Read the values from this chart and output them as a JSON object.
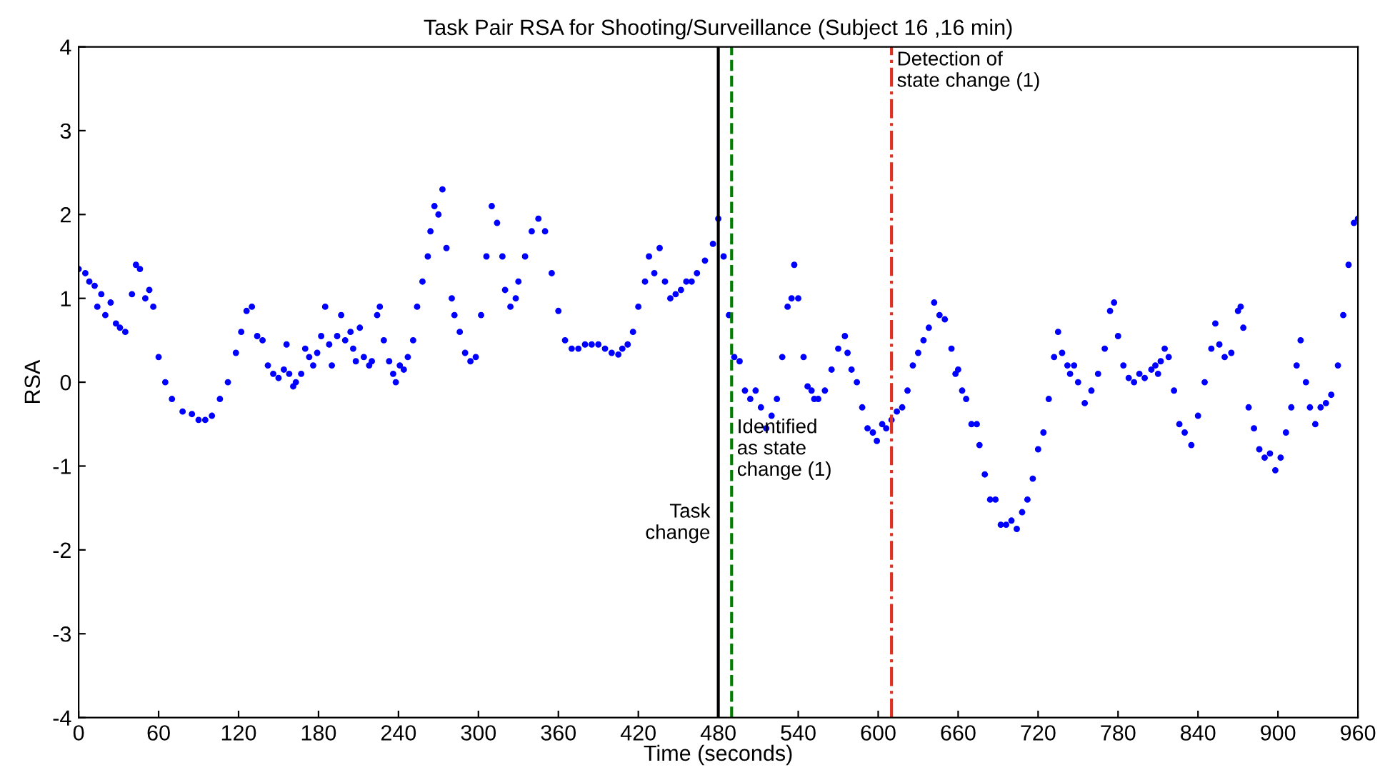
{
  "chart_data": {
    "type": "scatter",
    "title": "Task Pair RSA for Shooting/Surveillance (Subject 16 ,16 min)",
    "xlabel": "Time (seconds)",
    "ylabel": "RSA",
    "x": [
      0,
      5,
      8,
      12,
      14,
      17,
      20,
      24,
      28,
      31,
      35,
      40,
      43,
      46,
      50,
      53,
      56,
      60,
      65,
      70,
      78,
      85,
      90,
      95,
      100,
      106,
      112,
      118,
      122,
      126,
      130,
      134,
      138,
      142,
      146,
      150,
      154,
      156,
      158,
      161,
      163,
      167,
      170,
      173,
      176,
      179,
      182,
      185,
      188,
      190,
      194,
      197,
      200,
      204,
      206,
      208,
      211,
      214,
      218,
      220,
      224,
      226,
      229,
      233,
      236,
      238,
      241,
      244,
      247,
      251,
      254,
      258,
      262,
      264,
      267,
      270,
      273,
      276,
      280,
      282,
      286,
      290,
      294,
      298,
      302,
      306,
      310,
      314,
      318,
      320,
      324,
      328,
      330,
      335,
      340,
      345,
      350,
      355,
      360,
      365,
      370,
      375,
      380,
      385,
      390,
      395,
      400,
      405,
      408,
      412,
      416,
      420,
      425,
      428,
      432,
      436,
      440,
      444,
      448,
      452,
      456,
      460,
      464,
      470,
      476,
      480,
      484,
      488,
      492,
      496,
      500,
      504,
      508,
      512,
      516,
      520,
      524,
      528,
      532,
      535,
      537,
      540,
      544,
      547,
      550,
      552,
      555,
      560,
      565,
      570,
      575,
      577,
      580,
      584,
      588,
      592,
      596,
      599,
      603,
      606,
      610,
      614,
      618,
      622,
      626,
      630,
      634,
      638,
      642,
      646,
      650,
      655,
      658,
      660,
      663,
      666,
      670,
      674,
      676,
      680,
      684,
      688,
      692,
      696,
      700,
      704,
      708,
      712,
      716,
      720,
      724,
      728,
      732,
      735,
      738,
      742,
      744,
      747,
      750,
      755,
      760,
      765,
      770,
      774,
      777,
      780,
      784,
      788,
      792,
      796,
      800,
      805,
      808,
      810,
      812,
      815,
      818,
      822,
      826,
      830,
      835,
      840,
      845,
      850,
      853,
      856,
      860,
      865,
      870,
      872,
      874,
      878,
      882,
      886,
      890,
      894,
      898,
      902,
      906,
      910,
      914,
      917,
      921,
      924,
      928,
      932,
      936,
      940,
      945,
      949,
      953,
      957,
      960
    ],
    "series": [
      {
        "color": "#0000ff",
        "values": [
          1.35,
          1.3,
          1.2,
          1.15,
          0.9,
          1.05,
          0.8,
          0.95,
          0.7,
          0.65,
          0.6,
          1.05,
          1.4,
          1.35,
          1.0,
          1.1,
          0.9,
          0.3,
          0.0,
          -0.2,
          -0.35,
          -0.38,
          -0.45,
          -0.45,
          -0.4,
          -0.2,
          0.0,
          0.35,
          0.6,
          0.85,
          0.9,
          0.55,
          0.5,
          0.2,
          0.1,
          0.05,
          0.15,
          0.45,
          0.1,
          -0.05,
          0.0,
          0.1,
          0.4,
          0.3,
          0.2,
          0.35,
          0.55,
          0.9,
          0.45,
          0.2,
          0.55,
          0.8,
          0.5,
          0.6,
          0.4,
          0.25,
          0.65,
          0.3,
          0.2,
          0.25,
          0.8,
          0.9,
          0.5,
          0.25,
          0.1,
          0.0,
          0.2,
          0.15,
          0.3,
          0.5,
          0.9,
          1.2,
          1.5,
          1.8,
          2.1,
          2.0,
          2.3,
          1.6,
          1.0,
          0.8,
          0.6,
          0.35,
          0.25,
          0.3,
          0.8,
          1.5,
          2.1,
          1.9,
          1.5,
          1.1,
          0.9,
          1.0,
          1.2,
          1.5,
          1.8,
          1.95,
          1.8,
          1.3,
          0.85,
          0.5,
          0.4,
          0.4,
          0.45,
          0.45,
          0.45,
          0.4,
          0.35,
          0.33,
          0.4,
          0.45,
          0.6,
          0.9,
          1.2,
          1.5,
          1.3,
          1.6,
          1.2,
          1.0,
          1.05,
          1.1,
          1.2,
          1.2,
          1.3,
          1.45,
          1.65,
          1.95,
          1.5,
          0.8,
          0.3,
          0.25,
          -0.1,
          -0.2,
          -0.1,
          -0.3,
          -0.55,
          -0.4,
          -0.2,
          0.3,
          0.9,
          1.0,
          1.4,
          1.0,
          0.3,
          -0.05,
          -0.1,
          -0.2,
          -0.2,
          -0.1,
          0.15,
          0.4,
          0.55,
          0.35,
          0.15,
          0.0,
          -0.3,
          -0.55,
          -0.6,
          -0.7,
          -0.5,
          -0.55,
          -0.45,
          -0.35,
          -0.3,
          -0.1,
          0.2,
          0.35,
          0.5,
          0.65,
          0.95,
          0.8,
          0.75,
          0.4,
          0.1,
          0.15,
          -0.1,
          -0.2,
          -0.5,
          -0.5,
          -0.75,
          -1.1,
          -1.4,
          -1.4,
          -1.7,
          -1.7,
          -1.65,
          -1.75,
          -1.55,
          -1.4,
          -1.15,
          -0.8,
          -0.6,
          -0.2,
          0.3,
          0.6,
          0.35,
          0.2,
          0.1,
          0.2,
          0.0,
          -0.25,
          -0.1,
          0.1,
          0.4,
          0.85,
          0.95,
          0.55,
          0.2,
          0.05,
          0.0,
          0.1,
          0.05,
          0.15,
          0.2,
          0.1,
          0.25,
          0.4,
          0.3,
          -0.1,
          -0.5,
          -0.6,
          -0.75,
          -0.4,
          0.0,
          0.4,
          0.7,
          0.45,
          0.3,
          0.35,
          0.85,
          0.9,
          0.65,
          -0.3,
          -0.55,
          -0.8,
          -0.9,
          -0.85,
          -1.05,
          -0.9,
          -0.6,
          -0.3,
          0.2,
          0.5,
          0.0,
          -0.3,
          -0.5,
          -0.3,
          -0.25,
          -0.15,
          0.2,
          0.8,
          1.4,
          1.9,
          1.95
        ]
      }
    ],
    "marker": "circle",
    "xlim": [
      0,
      960
    ],
    "xticks": [
      0,
      60,
      120,
      180,
      240,
      300,
      360,
      420,
      480,
      540,
      600,
      660,
      720,
      780,
      840,
      900,
      960
    ],
    "ylim": [
      -4,
      4
    ],
    "yticks": [
      -4,
      -3,
      -2,
      -1,
      0,
      1,
      2,
      3,
      4
    ],
    "ref_lines": [
      {
        "axis": "x",
        "value": 480,
        "label": "Task\nchange",
        "color": "#000000",
        "line_style": "solid"
      },
      {
        "axis": "x",
        "value": 490,
        "label": "Identified\nas state\nchange (1)",
        "color": "#008000",
        "line_style": "dashed"
      },
      {
        "axis": "x",
        "value": 610,
        "label": "Detection of\nstate change (1)",
        "color": "#e03020",
        "line_style": "dashdot"
      }
    ],
    "grid": false,
    "legend": false
  }
}
